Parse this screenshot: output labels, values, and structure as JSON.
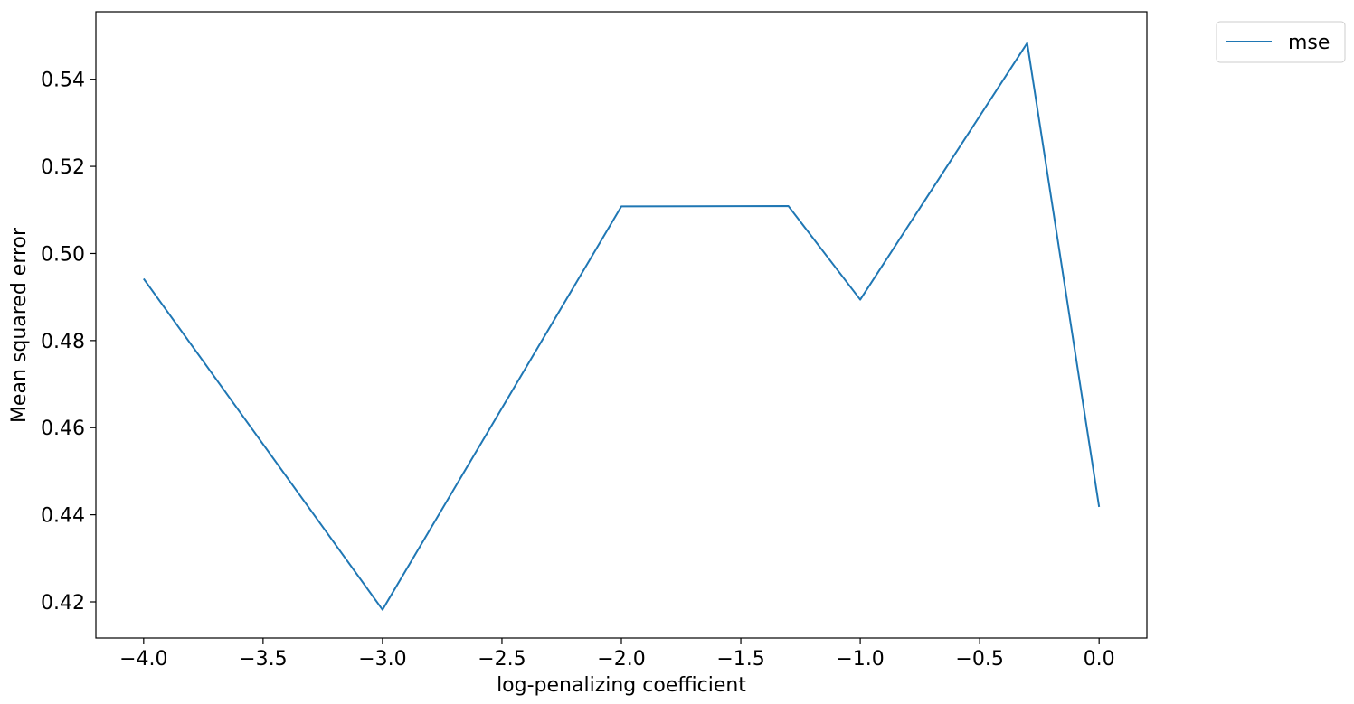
{
  "chart_data": {
    "type": "line",
    "title": "",
    "xlabel": "log-penalizing coefficient",
    "ylabel": "Mean squared error",
    "xlim": [
      -4.2,
      0.2
    ],
    "ylim": [
      0.4117,
      0.5555
    ],
    "xticks": [
      -4.0,
      -3.5,
      -3.0,
      -2.5,
      -2.0,
      -1.5,
      -1.0,
      -0.5,
      0.0
    ],
    "xtick_labels": [
      "−4.0",
      "−3.5",
      "−3.0",
      "−2.5",
      "−2.0",
      "−1.5",
      "−1.0",
      "−0.5",
      "0.0"
    ],
    "yticks": [
      0.42,
      0.44,
      0.46,
      0.48,
      0.5,
      0.52,
      0.54
    ],
    "ytick_labels": [
      "0.42",
      "0.44",
      "0.46",
      "0.48",
      "0.50",
      "0.52",
      "0.54"
    ],
    "grid": false,
    "legend_position": "outside-top-right",
    "series": [
      {
        "name": "mse",
        "color": "#1f77b4",
        "x": [
          -4.0,
          -3.0,
          -2.0,
          -1.301,
          -1.0,
          -0.301,
          0.0
        ],
        "y": [
          0.4942,
          0.4182,
          0.5108,
          0.5109,
          0.4894,
          0.5483,
          0.4418
        ]
      }
    ]
  }
}
